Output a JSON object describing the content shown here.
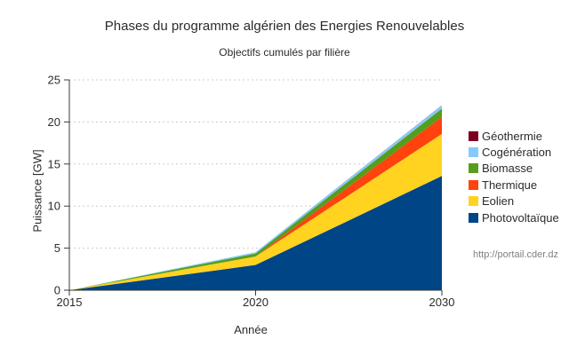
{
  "title": "Phases du programme algérien des Energies Renouvelables",
  "subtitle": "Objectifs cumulés par filière",
  "source_url": "http://portail.cder.dz",
  "chart_data": {
    "type": "area",
    "stacked": true,
    "title": "Phases du programme algérien des Energies Renouvelables",
    "subtitle": "Objectifs cumulés par filière",
    "xlabel": "Année",
    "ylabel": "Puissance [GW]",
    "categories": [
      "2015",
      "2020",
      "2030"
    ],
    "series": [
      {
        "name": "Photovoltaïque",
        "color": "#004586",
        "values": [
          0,
          3.0,
          13.575
        ]
      },
      {
        "name": "Eolien",
        "color": "#FFD320",
        "values": [
          0,
          1.01,
          5.01
        ]
      },
      {
        "name": "Thermique",
        "color": "#FF420E",
        "values": [
          0,
          0,
          2.0
        ]
      },
      {
        "name": "Biomasse",
        "color": "#579D1C",
        "values": [
          0,
          0.36,
          1.0
        ]
      },
      {
        "name": "Cogénération",
        "color": "#83CAFF",
        "values": [
          0,
          0.15,
          0.4
        ]
      },
      {
        "name": "Géothermie",
        "color": "#7E0021",
        "values": [
          0,
          0.005,
          0.015
        ]
      }
    ],
    "cumulative_totals": {
      "2015": 0,
      "2020": 4.525,
      "2030": 22.0
    },
    "y_ticks": [
      0,
      5,
      10,
      15,
      20,
      25
    ],
    "ylim": [
      0,
      25
    ],
    "grid": "horizontal dashed",
    "gridline_color": "#cccccc",
    "axis_color": "#3a3a3a",
    "legend_position": "right",
    "legend_order_top_to_bottom": [
      "Géothermie",
      "Cogénération",
      "Biomasse",
      "Thermique",
      "Eolien",
      "Photovoltaïque"
    ]
  }
}
